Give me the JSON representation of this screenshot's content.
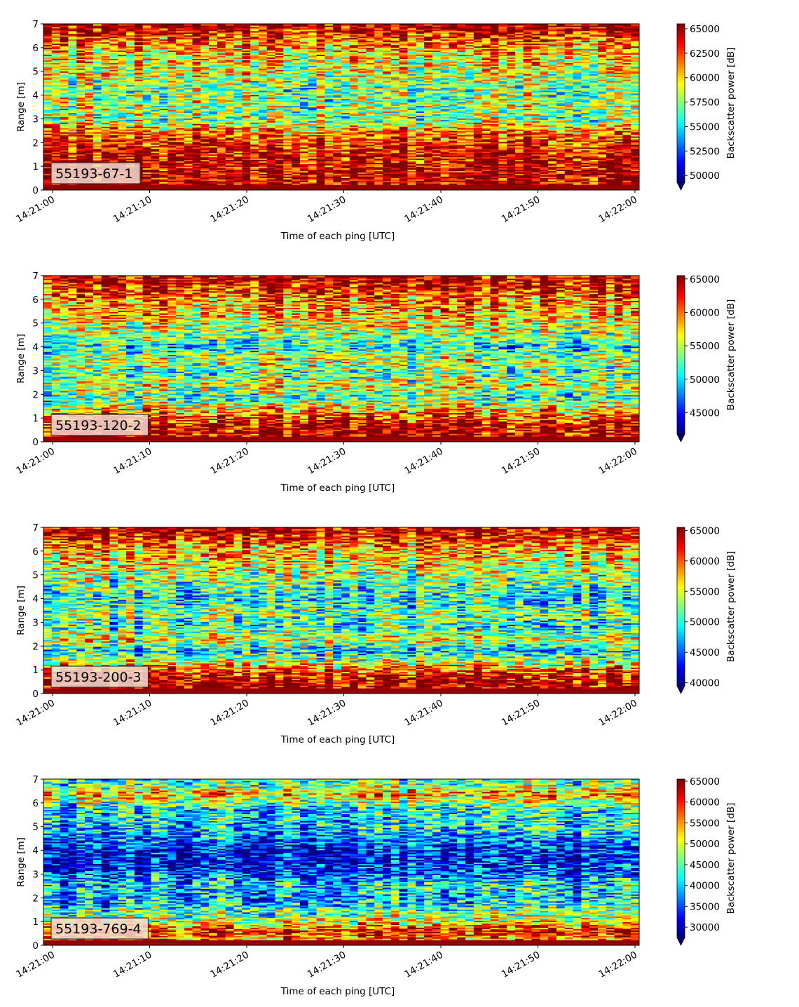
{
  "chart_data": [
    {
      "type": "heatmap",
      "label_box": "55193-67-1",
      "xlabel": "Time of each ping [UTC]",
      "ylabel": "Range [m]",
      "x_ticks": [
        "14:21:00",
        "14:21:10",
        "14:21:20",
        "14:21:30",
        "14:21:40",
        "14:21:50",
        "14:22:00"
      ],
      "xlim": [
        "14:20:59",
        "14:22:00"
      ],
      "y_ticks": [
        0,
        1,
        2,
        3,
        4,
        5,
        6,
        7
      ],
      "ylim": [
        0,
        7
      ],
      "colormap": "jet",
      "colorbar_label": "Backscatter power [dB]",
      "colorbar_ticks": [
        50000,
        52500,
        55000,
        57500,
        60000,
        62500,
        65000
      ],
      "colorbar_ticks_text": [
        "50000",
        "52500",
        "55000",
        "57500",
        "60000",
        "62500",
        "65000"
      ],
      "colorbar_range": [
        49300,
        65500
      ],
      "colorbar_extend": "min",
      "profile": [
        {
          "range": 0.15,
          "level": 0.95
        },
        {
          "range": 0.6,
          "level": 0.97
        },
        {
          "range": 1.2,
          "level": 0.95
        },
        {
          "range": 1.7,
          "level": 0.9
        },
        {
          "range": 2.2,
          "level": 0.82
        },
        {
          "range": 2.6,
          "level": 0.72
        },
        {
          "range": 3.0,
          "level": 0.5
        },
        {
          "range": 3.5,
          "level": 0.55
        },
        {
          "range": 4.2,
          "level": 0.5
        },
        {
          "range": 5.0,
          "level": 0.6
        },
        {
          "range": 5.8,
          "level": 0.68
        },
        {
          "range": 6.4,
          "level": 0.82
        },
        {
          "range": 6.8,
          "level": 0.97
        }
      ]
    },
    {
      "type": "heatmap",
      "label_box": "55193-120-2",
      "xlabel": "Time of each ping [UTC]",
      "ylabel": "Range [m]",
      "x_ticks": [
        "14:21:00",
        "14:21:10",
        "14:21:20",
        "14:21:30",
        "14:21:40",
        "14:21:50",
        "14:22:00"
      ],
      "xlim": [
        "14:20:59",
        "14:22:00"
      ],
      "y_ticks": [
        0,
        1,
        2,
        3,
        4,
        5,
        6,
        7
      ],
      "ylim": [
        0,
        7
      ],
      "colormap": "jet",
      "colorbar_label": "Backscatter power [dB]",
      "colorbar_ticks": [
        45000,
        50000,
        55000,
        60000,
        65000
      ],
      "colorbar_ticks_text": [
        "45000",
        "50000",
        "55000",
        "60000",
        "65000"
      ],
      "colorbar_range": [
        41800,
        65500
      ],
      "colorbar_extend": "min",
      "profile": [
        {
          "range": 0.15,
          "level": 0.96
        },
        {
          "range": 0.7,
          "level": 0.95
        },
        {
          "range": 1.3,
          "level": 0.72
        },
        {
          "range": 1.9,
          "level": 0.42
        },
        {
          "range": 2.4,
          "level": 0.62
        },
        {
          "range": 2.9,
          "level": 0.45
        },
        {
          "range": 3.4,
          "level": 0.6
        },
        {
          "range": 4.0,
          "level": 0.38
        },
        {
          "range": 4.6,
          "level": 0.55
        },
        {
          "range": 5.3,
          "level": 0.68
        },
        {
          "range": 6.0,
          "level": 0.75
        },
        {
          "range": 6.5,
          "level": 0.88
        },
        {
          "range": 6.85,
          "level": 0.97
        }
      ]
    },
    {
      "type": "heatmap",
      "label_box": "55193-200-3",
      "xlabel": "Time of each ping [UTC]",
      "ylabel": "Range [m]",
      "x_ticks": [
        "14:21:00",
        "14:21:10",
        "14:21:20",
        "14:21:30",
        "14:21:40",
        "14:21:50",
        "14:22:00"
      ],
      "xlim": [
        "14:20:59",
        "14:22:00"
      ],
      "y_ticks": [
        0,
        1,
        2,
        3,
        4,
        5,
        6,
        7
      ],
      "ylim": [
        0,
        7
      ],
      "colormap": "jet",
      "colorbar_label": "Backscatter power [dB]",
      "colorbar_ticks": [
        40000,
        45000,
        50000,
        55000,
        60000,
        65000
      ],
      "colorbar_ticks_text": [
        "40000",
        "45000",
        "50000",
        "55000",
        "60000",
        "65000"
      ],
      "colorbar_range": [
        39500,
        65500
      ],
      "colorbar_extend": "min",
      "profile": [
        {
          "range": 0.15,
          "level": 0.95
        },
        {
          "range": 0.6,
          "level": 0.96
        },
        {
          "range": 1.2,
          "level": 0.7
        },
        {
          "range": 1.8,
          "level": 0.32
        },
        {
          "range": 2.3,
          "level": 0.62
        },
        {
          "range": 2.8,
          "level": 0.38
        },
        {
          "range": 3.4,
          "level": 0.5
        },
        {
          "range": 4.0,
          "level": 0.36
        },
        {
          "range": 4.7,
          "level": 0.48
        },
        {
          "range": 5.4,
          "level": 0.6
        },
        {
          "range": 6.0,
          "level": 0.68
        },
        {
          "range": 6.5,
          "level": 0.84
        },
        {
          "range": 6.85,
          "level": 0.96
        }
      ]
    },
    {
      "type": "heatmap",
      "label_box": "55193-769-4",
      "xlabel": "Time of each ping [UTC]",
      "ylabel": "Range [m]",
      "x_ticks": [
        "14:21:00",
        "14:21:10",
        "14:21:20",
        "14:21:30",
        "14:21:40",
        "14:21:50",
        "14:22:00"
      ],
      "xlim": [
        "14:20:59",
        "14:22:00"
      ],
      "y_ticks": [
        0,
        1,
        2,
        3,
        4,
        5,
        6,
        7
      ],
      "ylim": [
        0,
        7
      ],
      "colormap": "jet",
      "colorbar_label": "Backscatter power [dB]",
      "colorbar_ticks": [
        30000,
        35000,
        40000,
        45000,
        50000,
        55000,
        60000,
        65000
      ],
      "colorbar_ticks_text": [
        "30000",
        "35000",
        "40000",
        "45000",
        "50000",
        "55000",
        "60000",
        "65000"
      ],
      "colorbar_range": [
        27500,
        65500
      ],
      "colorbar_extend": "min",
      "profile": [
        {
          "range": 0.1,
          "level": 0.95
        },
        {
          "range": 0.3,
          "level": 0.72
        },
        {
          "range": 0.6,
          "level": 0.9
        },
        {
          "range": 1.0,
          "level": 0.6
        },
        {
          "range": 1.5,
          "level": 0.45
        },
        {
          "range": 2.0,
          "level": 0.3
        },
        {
          "range": 2.6,
          "level": 0.35
        },
        {
          "range": 3.2,
          "level": 0.15
        },
        {
          "range": 3.8,
          "level": 0.1
        },
        {
          "range": 4.4,
          "level": 0.22
        },
        {
          "range": 5.0,
          "level": 0.35
        },
        {
          "range": 5.8,
          "level": 0.38
        },
        {
          "range": 6.4,
          "level": 0.75
        },
        {
          "range": 6.8,
          "level": 0.45
        }
      ]
    }
  ]
}
